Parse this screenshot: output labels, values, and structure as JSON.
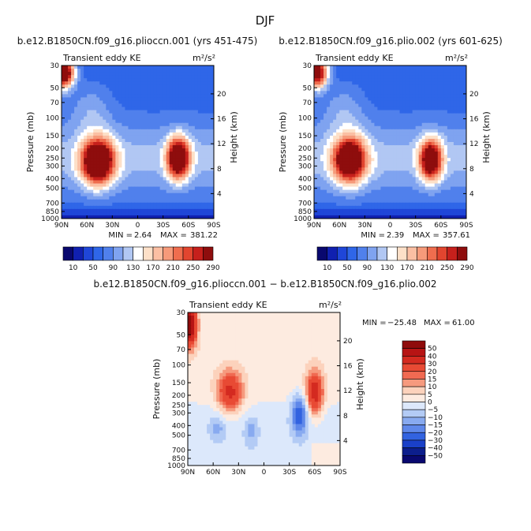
{
  "page_title": "DJF",
  "chart_data": [
    {
      "type": "contour",
      "title": "b.e12.B1850CN.f09_g16.plioccn.001 (yrs 451-475)",
      "left_label": "Transient eddy KE",
      "units": "m²/s²",
      "ylabel": "Pressure (mb)",
      "ylabel_right": "Height (km)",
      "x_ticks": [
        "90N",
        "60N",
        "30N",
        "0",
        "30S",
        "60S",
        "90S"
      ],
      "x_values": [
        90,
        60,
        30,
        0,
        -30,
        -60,
        -90
      ],
      "y_ticks": [
        "30",
        "50",
        "70",
        "100",
        "150",
        "200",
        "250",
        "300",
        "400",
        "500",
        "700",
        "850",
        "1000"
      ],
      "y_values": [
        30,
        50,
        70,
        100,
        150,
        200,
        250,
        300,
        400,
        500,
        700,
        850,
        1000
      ],
      "height_ticks": [
        "20",
        "16",
        "12",
        "8",
        "4"
      ],
      "height_values": [
        20,
        16,
        12,
        8,
        4
      ],
      "min_label": "MIN =",
      "min_value": "2.64",
      "max_label": "MAX =",
      "max_value": "381.22",
      "colorbar_labels": [
        "10",
        "50",
        "90",
        "130",
        "170",
        "210",
        "250",
        "290"
      ],
      "features": [
        {
          "name": "polar-strat-max",
          "lat": 88,
          "p": 35,
          "value": 300,
          "sx": 8,
          "sy": 0.22
        },
        {
          "name": "nh-jet",
          "lat": 47,
          "p": 270,
          "value": 290,
          "sx": 12,
          "sy": 0.32
        },
        {
          "name": "sh-jet",
          "lat": -48,
          "p": 250,
          "value": 280,
          "sx": 8,
          "sy": 0.28
        }
      ]
    },
    {
      "type": "contour",
      "title": "b.e12.B1850CN.f09_g16.plio.002 (yrs 601-625)",
      "left_label": "Transient eddy KE",
      "units": "m²/s²",
      "ylabel": "Pressure (mb)",
      "ylabel_right": "Height (km)",
      "x_ticks": [
        "90N",
        "60N",
        "30N",
        "0",
        "30S",
        "60S",
        "90S"
      ],
      "x_values": [
        90,
        60,
        30,
        0,
        -30,
        -60,
        -90
      ],
      "y_ticks": [
        "30",
        "50",
        "70",
        "100",
        "150",
        "200",
        "250",
        "300",
        "400",
        "500",
        "700",
        "850",
        "1000"
      ],
      "y_values": [
        30,
        50,
        70,
        100,
        150,
        200,
        250,
        300,
        400,
        500,
        700,
        850,
        1000
      ],
      "height_ticks": [
        "20",
        "16",
        "12",
        "8",
        "4"
      ],
      "height_values": [
        20,
        16,
        12,
        8,
        4
      ],
      "min_label": "MIN =",
      "min_value": "2.39",
      "max_label": "MAX =",
      "max_value": "357.61",
      "colorbar_labels": [
        "10",
        "50",
        "90",
        "130",
        "170",
        "210",
        "250",
        "290"
      ],
      "features": [
        {
          "name": "polar-strat-max",
          "lat": 87,
          "p": 35,
          "value": 270,
          "sx": 8,
          "sy": 0.22
        },
        {
          "name": "nh-jet",
          "lat": 48,
          "p": 260,
          "value": 270,
          "sx": 12,
          "sy": 0.32
        },
        {
          "name": "sh-jet",
          "lat": -48,
          "p": 260,
          "value": 250,
          "sx": 8,
          "sy": 0.28
        }
      ]
    },
    {
      "type": "contour",
      "title": "b.e12.B1850CN.f09_g16.plioccn.001 − b.e12.B1850CN.f09_g16.plio.002",
      "left_label": "Transient eddy KE",
      "units": "m²/s²",
      "ylabel": "Pressure (mb)",
      "ylabel_right": "Height (km)",
      "x_ticks": [
        "90N",
        "60N",
        "30N",
        "0",
        "30S",
        "60S",
        "90S"
      ],
      "x_values": [
        90,
        60,
        30,
        0,
        -30,
        -60,
        -90
      ],
      "y_ticks": [
        "30",
        "50",
        "70",
        "100",
        "150",
        "200",
        "250",
        "300",
        "400",
        "500",
        "700",
        "850",
        "1000"
      ],
      "y_values": [
        30,
        50,
        70,
        100,
        150,
        200,
        250,
        300,
        400,
        500,
        700,
        850,
        1000
      ],
      "height_ticks": [
        "20",
        "16",
        "12",
        "8",
        "4"
      ],
      "height_values": [
        20,
        16,
        12,
        8,
        4
      ],
      "min_label": "MIN =",
      "min_value": "−25.48",
      "max_label": "MAX =",
      "max_value": "61.00",
      "colorbar_labels": [
        "50",
        "40",
        "30",
        "20",
        "15",
        "10",
        "5",
        "0",
        "−5",
        "−10",
        "−15",
        "−20",
        "−30",
        "−40",
        "−50"
      ],
      "features": [
        {
          "name": "polar-strat-pos",
          "lat": 88,
          "p": 40,
          "value": 55,
          "sx": 5,
          "sy": 0.3
        },
        {
          "name": "nh-jet-pos",
          "lat": 40,
          "p": 185,
          "value": 32,
          "sx": 9,
          "sy": 0.28
        },
        {
          "name": "sh-jet-pos",
          "lat": -60,
          "p": 190,
          "value": 35,
          "sx": 6,
          "sy": 0.3
        },
        {
          "name": "sh-neg",
          "lat": -42,
          "p": 310,
          "value": -24,
          "sx": 6,
          "sy": 0.28
        },
        {
          "name": "nh-low-neg",
          "lat": 55,
          "p": 420,
          "value": -10,
          "sx": 6,
          "sy": 0.18
        },
        {
          "name": "nh-mid-neg",
          "lat": 15,
          "p": 450,
          "value": -10,
          "sx": 5,
          "sy": 0.2
        }
      ]
    }
  ],
  "colors": {
    "seq_scale": [
      "#09086f",
      "#1020b0",
      "#1f46d8",
      "#2f66e8",
      "#5080ec",
      "#7fa3f0",
      "#b1c7f3",
      "#ffffff",
      "#fde0c8",
      "#fbbfa3",
      "#f69a7a",
      "#ef6d4e",
      "#e2452f",
      "#c6201c",
      "#8e0d0d"
    ],
    "div_scale": [
      "#8f0b0b",
      "#b71414",
      "#d42a20",
      "#e84a34",
      "#f06a52",
      "#f69a7e",
      "#fcd2bc",
      "#fdebe0",
      "#dce8fb",
      "#b3cbf5",
      "#88aaf0",
      "#5f88ea",
      "#3263e0",
      "#1a40c8",
      "#0c1e8c"
    ]
  }
}
